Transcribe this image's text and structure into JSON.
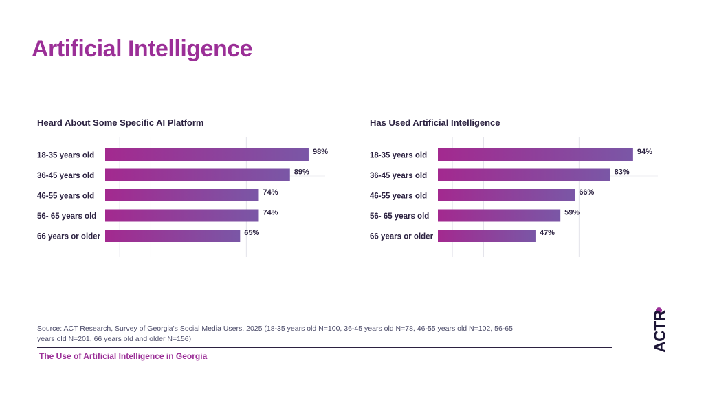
{
  "page": {
    "title": "Artificial Intelligence",
    "footer_title": "The Use of Artificial Intelligence in Georgia",
    "source": "Source: ACT Research, Survey of Georgia's Social Media Users, 2025 (18-35 years old N=100, 36-45 years old N=78, 46-55 years old N=102, 56-65 years old N=201, 66 years old and older N=156)",
    "logo_text": "ACTR",
    "accent_color": "#9b2f97",
    "bar_gradient_start": "#a3298f",
    "bar_gradient_end": "#7a57a6"
  },
  "chart_data": [
    {
      "type": "bar",
      "orientation": "horizontal",
      "title": "Heard About Some Specific AI Platform",
      "categories": [
        "18-35  years old",
        "36-45  years old",
        "46-55  years old",
        "56- 65  years old",
        "66 years or older"
      ],
      "values": [
        98,
        89,
        74,
        74,
        65
      ],
      "value_labels": [
        "98%",
        "89%",
        "74%",
        "74%",
        "65%"
      ],
      "xlim": [
        0,
        100
      ],
      "grid": true
    },
    {
      "type": "bar",
      "orientation": "horizontal",
      "title": "Has Used Artificial Intelligence",
      "categories": [
        "18-35  years old",
        "36-45  years old",
        "46-55  years old",
        "56- 65  years old",
        "66 years or older"
      ],
      "values": [
        94,
        83,
        66,
        59,
        47
      ],
      "value_labels": [
        "94%",
        "83%",
        "66%",
        "59%",
        "47%"
      ],
      "xlim": [
        0,
        100
      ],
      "grid": true
    }
  ]
}
